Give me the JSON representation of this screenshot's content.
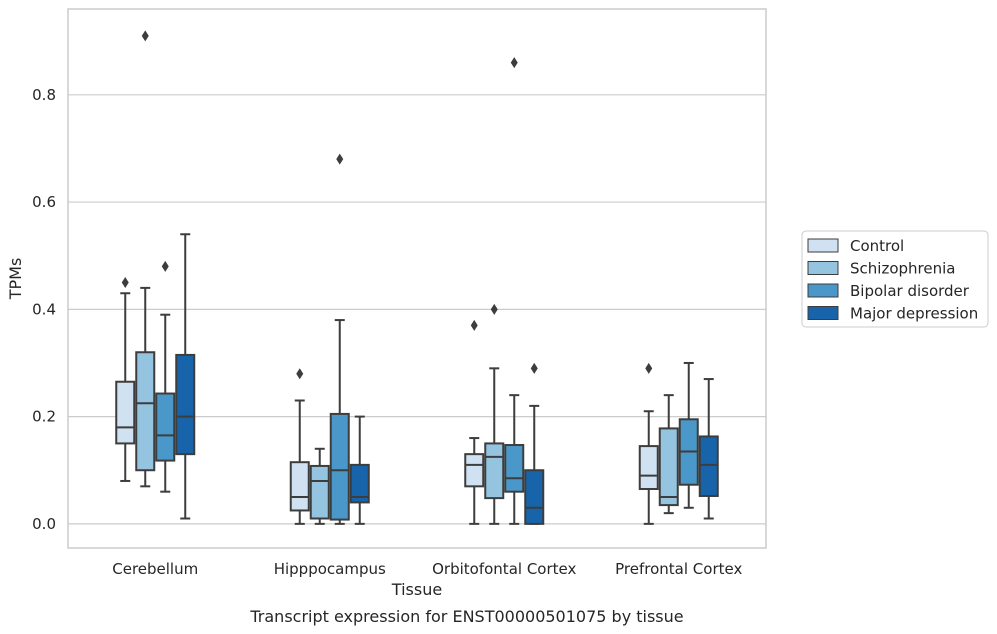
{
  "chart_data": {
    "type": "box",
    "title": "",
    "caption": "Transcript expression for ENST00000501075 by tissue",
    "xlabel": "Tissue",
    "ylabel": "TPMs",
    "ylim": [
      -0.045,
      0.96
    ],
    "yticks": [
      0.0,
      0.2,
      0.4,
      0.6,
      0.8
    ],
    "ytick_labels": [
      "0.0",
      "0.2",
      "0.4",
      "0.6",
      "0.8"
    ],
    "grid": "horizontal",
    "legend_position": "right",
    "categories": [
      "Cerebellum",
      "Hipppocampus",
      "Orbitofontal Cortex",
      "Prefrontal Cortex"
    ],
    "colors": {
      "Control": "#d0e1f2",
      "Schizophrenia": "#94c4df",
      "Bipolar disorder": "#4a98c9",
      "Major depression": "#1764ab",
      "edge": "#3d3d3d",
      "grid": "#cccccc",
      "frame": "#cccccc"
    },
    "series": [
      {
        "name": "Control",
        "boxes": [
          {
            "whisker_low": 0.08,
            "q1": 0.15,
            "median": 0.18,
            "q3": 0.265,
            "whisker_high": 0.43,
            "outliers": [
              0.45
            ]
          },
          {
            "whisker_low": 0.0,
            "q1": 0.025,
            "median": 0.05,
            "q3": 0.115,
            "whisker_high": 0.23,
            "outliers": [
              0.28
            ]
          },
          {
            "whisker_low": 0.0,
            "q1": 0.07,
            "median": 0.11,
            "q3": 0.13,
            "whisker_high": 0.16,
            "outliers": [
              0.37
            ]
          },
          {
            "whisker_low": 0.0,
            "q1": 0.065,
            "median": 0.09,
            "q3": 0.145,
            "whisker_high": 0.21,
            "outliers": [
              0.29
            ]
          }
        ]
      },
      {
        "name": "Schizophrenia",
        "boxes": [
          {
            "whisker_low": 0.07,
            "q1": 0.1,
            "median": 0.225,
            "q3": 0.32,
            "whisker_high": 0.44,
            "outliers": [
              0.91
            ]
          },
          {
            "whisker_low": 0.0,
            "q1": 0.01,
            "median": 0.08,
            "q3": 0.108,
            "whisker_high": 0.14,
            "outliers": []
          },
          {
            "whisker_low": 0.0,
            "q1": 0.048,
            "median": 0.125,
            "q3": 0.15,
            "whisker_high": 0.29,
            "outliers": [
              0.4
            ]
          },
          {
            "whisker_low": 0.02,
            "q1": 0.035,
            "median": 0.05,
            "q3": 0.178,
            "whisker_high": 0.24,
            "outliers": []
          }
        ]
      },
      {
        "name": "Bipolar disorder",
        "boxes": [
          {
            "whisker_low": 0.06,
            "q1": 0.118,
            "median": 0.165,
            "q3": 0.243,
            "whisker_high": 0.39,
            "outliers": [
              0.48
            ]
          },
          {
            "whisker_low": 0.0,
            "q1": 0.008,
            "median": 0.1,
            "q3": 0.205,
            "whisker_high": 0.38,
            "outliers": [
              0.68
            ]
          },
          {
            "whisker_low": 0.0,
            "q1": 0.06,
            "median": 0.085,
            "q3": 0.147,
            "whisker_high": 0.24,
            "outliers": [
              0.86
            ]
          },
          {
            "whisker_low": 0.03,
            "q1": 0.073,
            "median": 0.135,
            "q3": 0.195,
            "whisker_high": 0.3,
            "outliers": []
          }
        ]
      },
      {
        "name": "Major depression",
        "boxes": [
          {
            "whisker_low": 0.01,
            "q1": 0.13,
            "median": 0.2,
            "q3": 0.315,
            "whisker_high": 0.54,
            "outliers": []
          },
          {
            "whisker_low": 0.0,
            "q1": 0.04,
            "median": 0.05,
            "q3": 0.11,
            "whisker_high": 0.2,
            "outliers": []
          },
          {
            "whisker_low": 0.0,
            "q1": 0.0,
            "median": 0.03,
            "q3": 0.1,
            "whisker_high": 0.22,
            "outliers": [
              0.29
            ]
          },
          {
            "whisker_low": 0.01,
            "q1": 0.052,
            "median": 0.11,
            "q3": 0.163,
            "whisker_high": 0.27,
            "outliers": []
          }
        ]
      }
    ]
  }
}
